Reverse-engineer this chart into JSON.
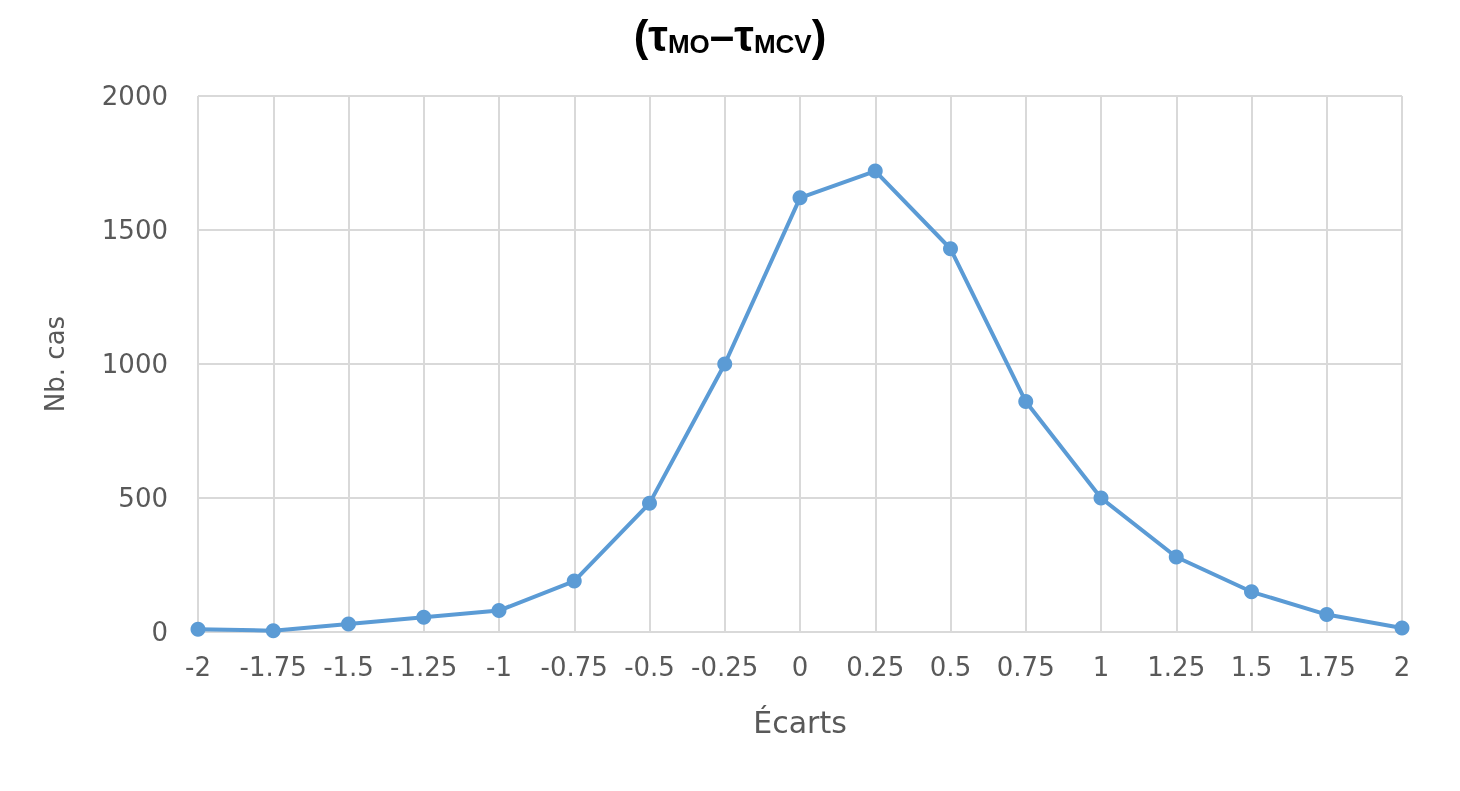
{
  "chart_data": {
    "type": "line",
    "title": "(τ$_{MO}$–τ$_{MCV}$)",
    "xlabel": "Écarts",
    "ylabel": "Nb. cas",
    "categories": [
      "-2",
      "-1.75",
      "-1.5",
      "-1.25",
      "-1",
      "-0.75",
      "-0.5",
      "-0.25",
      "0",
      "0.25",
      "0.5",
      "0.75",
      "1",
      "1.25",
      "1.5",
      "1.75",
      "2"
    ],
    "series": [
      {
        "color": "#5b9bd5",
        "values": [
          10,
          5,
          30,
          55,
          80,
          190,
          480,
          1000,
          1620,
          1720,
          1430,
          860,
          500,
          280,
          150,
          65,
          15
        ]
      }
    ],
    "ylim": [
      0,
      2000
    ],
    "yticks": [
      0,
      500,
      1000,
      1500,
      2000
    ],
    "grid": true,
    "marker": "circle",
    "line_style": "solid"
  }
}
